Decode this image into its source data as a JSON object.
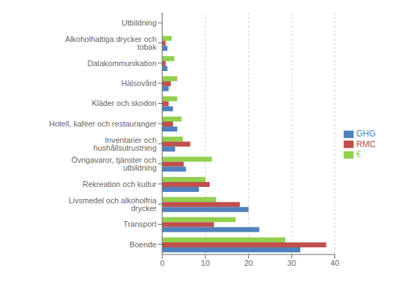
{
  "chart_data": {
    "type": "bar",
    "orientation": "horizontal",
    "categories": [
      "Boende",
      "Transport",
      "Livsmedel och alkoholfria drycker",
      "Rekreation och kultur",
      "Övrigavaror, tjänster och utbildning",
      "Inventarier och hushållsutrustning",
      "Hotell, kaféer och restauranger",
      "Kläder och skodon",
      "Hälsovård",
      "Datakommunikation",
      "Alkoholhaltiga drycker och tobak",
      "Utbildning"
    ],
    "series": [
      {
        "name": "€",
        "color": "#92d050",
        "values": [
          28.5,
          17.0,
          12.5,
          10.0,
          11.5,
          4.8,
          4.5,
          3.5,
          3.5,
          2.8,
          2.2,
          0.0
        ]
      },
      {
        "name": "RMC",
        "color": "#c0504d",
        "values": [
          38.0,
          12.0,
          18.0,
          11.0,
          5.0,
          6.5,
          2.5,
          1.5,
          2.0,
          0.8,
          0.8,
          0.0
        ]
      },
      {
        "name": "GHG",
        "color": "#4f81bd",
        "values": [
          32.0,
          22.5,
          20.0,
          8.5,
          5.5,
          3.0,
          3.5,
          2.5,
          1.5,
          1.2,
          1.2,
          0.0
        ]
      }
    ],
    "xlim": [
      0,
      40
    ],
    "xticks": [
      0,
      10,
      20,
      30,
      40
    ],
    "grid": true,
    "legend": "right"
  }
}
